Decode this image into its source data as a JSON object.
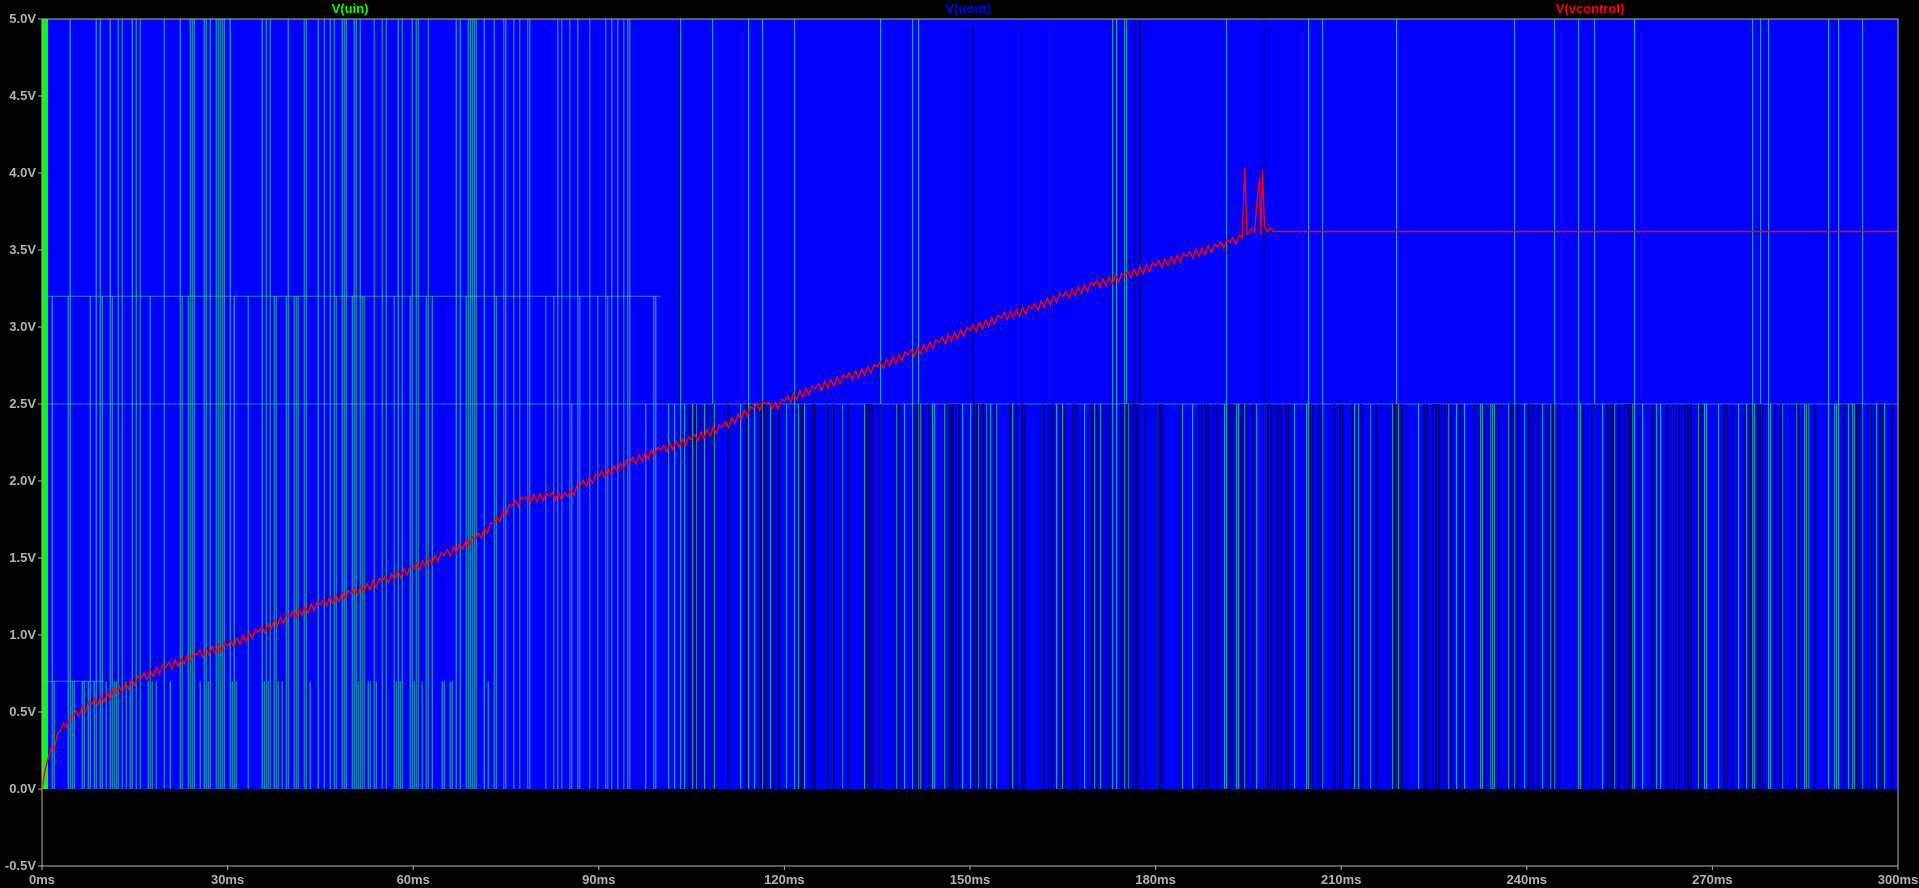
{
  "chart_data": {
    "type": "line",
    "background": "#000000",
    "axis_color": "#b4b4b4",
    "xlim": [
      0,
      300
    ],
    "ylim": [
      -0.5,
      5.0
    ],
    "x_unit": "ms",
    "x_ticks": [
      {
        "value": 0,
        "label": "0ms"
      },
      {
        "value": 30,
        "label": "30ms"
      },
      {
        "value": 60,
        "label": "60ms"
      },
      {
        "value": 90,
        "label": "90ms"
      },
      {
        "value": 120,
        "label": "120ms"
      },
      {
        "value": 150,
        "label": "150ms"
      },
      {
        "value": 180,
        "label": "180ms"
      },
      {
        "value": 210,
        "label": "210ms"
      },
      {
        "value": 240,
        "label": "240ms"
      },
      {
        "value": 270,
        "label": "270ms"
      },
      {
        "value": 300,
        "label": "300ms"
      }
    ],
    "y_ticks": [
      {
        "value": -0.5,
        "label": "-0.5V"
      },
      {
        "value": 0.0,
        "label": "0.0V"
      },
      {
        "value": 0.5,
        "label": "0.5V"
      },
      {
        "value": 1.0,
        "label": "1.0V"
      },
      {
        "value": 1.5,
        "label": "1.5V"
      },
      {
        "value": 2.0,
        "label": "2.0V"
      },
      {
        "value": 2.5,
        "label": "2.5V"
      },
      {
        "value": 3.0,
        "label": "3.0V"
      },
      {
        "value": 3.5,
        "label": "3.5V"
      },
      {
        "value": 4.0,
        "label": "4.0V"
      },
      {
        "value": 4.5,
        "label": "4.5V"
      },
      {
        "value": 5.0,
        "label": "5.0V"
      }
    ],
    "series": [
      {
        "name": "V(uin)",
        "color": "#00ff00",
        "style": "dense switching traces",
        "regions": [
          {
            "x": [
              0,
              1
            ],
            "levels": [
              0,
              5.0
            ]
          },
          {
            "x": [
              1,
              74
            ],
            "levels": [
              0,
              0.7,
              3.2,
              5.0
            ]
          },
          {
            "x": [
              74,
              100
            ],
            "levels": [
              0,
              2.5,
              3.2,
              5.0
            ]
          },
          {
            "x": [
              100,
              300
            ],
            "levels": [
              0,
              2.5,
              5.0
            ]
          }
        ]
      },
      {
        "name": "V(uout)",
        "color": "#0000ff",
        "style": "filled switching band",
        "bands": [
          {
            "x": [
              0,
              103
            ],
            "y": [
              0,
              5.0
            ]
          },
          {
            "x": [
              103,
              300
            ],
            "y": [
              0,
              2.5
            ],
            "pattern": "pwm"
          },
          {
            "x": [
              103,
              300
            ],
            "y": [
              2.5,
              5.0
            ],
            "pattern": "solid"
          }
        ]
      },
      {
        "name": "V(vcontrol)",
        "color": "#ff0000",
        "points": [
          [
            0,
            0.0
          ],
          [
            1,
            0.2
          ],
          [
            3,
            0.38
          ],
          [
            5,
            0.47
          ],
          [
            8,
            0.55
          ],
          [
            12,
            0.63
          ],
          [
            16,
            0.72
          ],
          [
            20,
            0.79
          ],
          [
            25,
            0.87
          ],
          [
            30,
            0.93
          ],
          [
            35,
            1.02
          ],
          [
            40,
            1.12
          ],
          [
            45,
            1.2
          ],
          [
            50,
            1.27
          ],
          [
            55,
            1.35
          ],
          [
            60,
            1.43
          ],
          [
            65,
            1.52
          ],
          [
            70,
            1.62
          ],
          [
            73,
            1.72
          ],
          [
            76,
            1.84
          ],
          [
            78,
            1.88
          ],
          [
            82,
            1.9
          ],
          [
            85,
            1.9
          ],
          [
            87,
            1.97
          ],
          [
            90,
            2.03
          ],
          [
            95,
            2.12
          ],
          [
            100,
            2.2
          ],
          [
            105,
            2.27
          ],
          [
            110,
            2.35
          ],
          [
            115,
            2.47
          ],
          [
            117,
            2.5
          ],
          [
            118,
            2.47
          ],
          [
            120,
            2.52
          ],
          [
            125,
            2.6
          ],
          [
            130,
            2.67
          ],
          [
            135,
            2.74
          ],
          [
            140,
            2.82
          ],
          [
            145,
            2.9
          ],
          [
            150,
            2.98
          ],
          [
            155,
            3.06
          ],
          [
            160,
            3.12
          ],
          [
            165,
            3.2
          ],
          [
            170,
            3.27
          ],
          [
            175,
            3.33
          ],
          [
            180,
            3.4
          ],
          [
            185,
            3.46
          ],
          [
            190,
            3.52
          ],
          [
            192,
            3.55
          ],
          [
            194,
            3.58
          ],
          [
            194.4,
            4.03
          ],
          [
            194.8,
            3.6
          ],
          [
            196,
            3.62
          ],
          [
            196.8,
            3.97
          ],
          [
            197,
            3.6
          ],
          [
            197.3,
            4.02
          ],
          [
            197.6,
            3.65
          ],
          [
            198,
            3.62
          ],
          [
            199,
            3.62
          ],
          [
            200,
            3.62
          ],
          [
            230,
            3.62
          ],
          [
            260,
            3.62
          ],
          [
            300,
            3.62
          ]
        ]
      }
    ]
  }
}
